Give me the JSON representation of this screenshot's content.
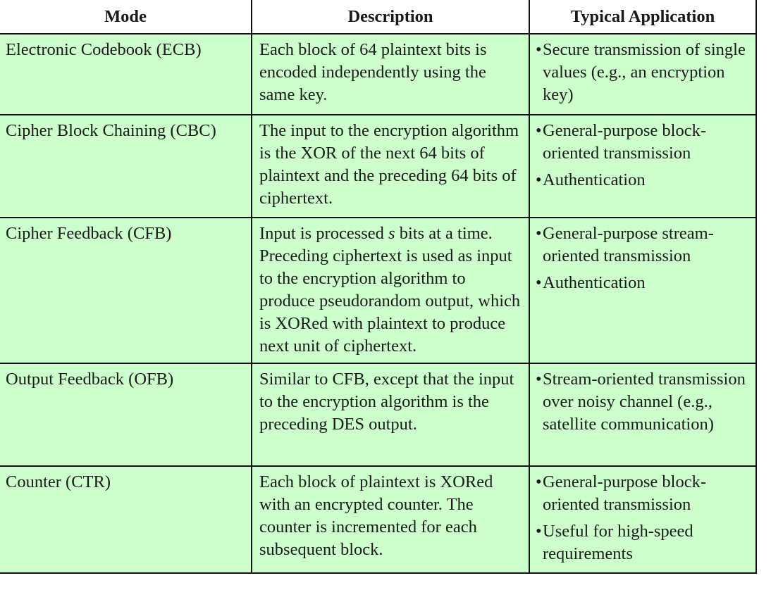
{
  "headers": {
    "mode": "Mode",
    "description": "Description",
    "application": "Typical Application"
  },
  "rows": [
    {
      "mode": "Electronic Codebook (ECB)",
      "description": "Each block of 64 plaintext bits is encoded independently using the same key.",
      "applications": [
        "Secure transmission of single values (e.g., an encryption key)"
      ]
    },
    {
      "mode": "Cipher Block Chaining (CBC)",
      "description": "The input to the encryption algorithm is the XOR of the next 64 bits of plaintext and the preceding 64 bits of ciphertext.",
      "applications": [
        "General-purpose block-oriented transmission",
        "Authentication"
      ]
    },
    {
      "mode": "Cipher Feedback (CFB)",
      "description_before": "Input is processed ",
      "description_var": "s",
      "description_after": " bits at a time. Preceding ciphertext is used as input to the encryption algorithm to produce pseudorandom output, which is XORed with plaintext to produce next unit of ciphertext.",
      "applications": [
        "General-purpose stream-oriented transmission",
        "Authentication"
      ]
    },
    {
      "mode": "Output Feedback (OFB)",
      "description": "Similar to CFB, except that the input to the encryption algorithm is the preceding DES output.",
      "applications": [
        "Stream-oriented transmission over noisy channel (e.g., satellite communication)"
      ]
    },
    {
      "mode": "Counter (CTR)",
      "description": "Each block of plaintext is XORed with an encrypted counter. The counter is incremented for each subsequent block.",
      "applications": [
        "General-purpose block-oriented transmission",
        "Useful for high-speed requirements"
      ]
    }
  ],
  "bullet_glyph": "•",
  "colors": {
    "row_background": "#ccffcc",
    "header_background": "#ffffff",
    "border": "#111111"
  }
}
